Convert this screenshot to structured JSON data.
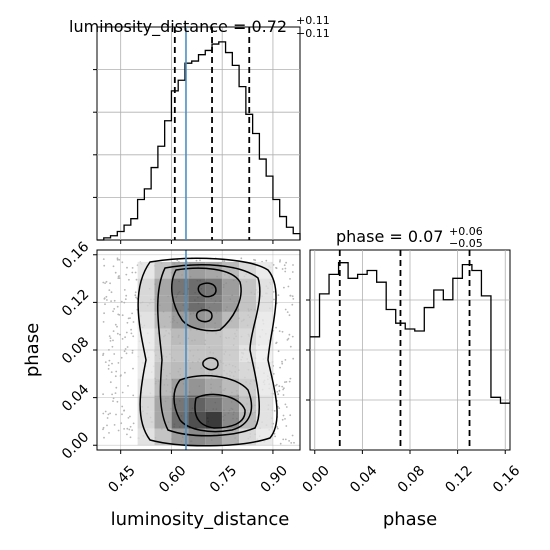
{
  "chart_data": [
    {
      "type": "histogram",
      "panel": "luminosity_distance marginal",
      "title_prefix": "luminosity_distance = 0.72",
      "title_sup": "+0.11",
      "title_sub": "−0.11",
      "xlim": [
        0.38,
        0.98
      ],
      "bin_edges": [
        0.38,
        0.4,
        0.42,
        0.44,
        0.46,
        0.48,
        0.5,
        0.52,
        0.54,
        0.56,
        0.58,
        0.6,
        0.62,
        0.64,
        0.66,
        0.68,
        0.7,
        0.72,
        0.74,
        0.76,
        0.78,
        0.8,
        0.82,
        0.84,
        0.86,
        0.88,
        0.9,
        0.92,
        0.94,
        0.96,
        0.98
      ],
      "counts": [
        0,
        2,
        4,
        8,
        14,
        20,
        38,
        48,
        68,
        88,
        112,
        140,
        150,
        166,
        168,
        174,
        178,
        184,
        186,
        176,
        164,
        144,
        118,
        100,
        76,
        60,
        38,
        22,
        12,
        6
      ],
      "ymax": 200,
      "quantiles": [
        0.61,
        0.72,
        0.83
      ],
      "truth": 0.643,
      "grid": true
    },
    {
      "type": "histogram",
      "panel": "phase marginal",
      "title_prefix": "phase = 0.07",
      "title_sup": "+0.06",
      "title_sub": "−0.05",
      "xlim": [
        -0.004,
        0.164
      ],
      "bin_edges": [
        -0.004,
        0.004,
        0.012,
        0.02,
        0.028,
        0.036,
        0.044,
        0.052,
        0.06,
        0.068,
        0.076,
        0.084,
        0.092,
        0.1,
        0.108,
        0.116,
        0.124,
        0.132,
        0.14,
        0.148,
        0.156,
        0.164
      ],
      "counts": [
        116,
        160,
        180,
        192,
        176,
        180,
        184,
        172,
        144,
        130,
        124,
        122,
        146,
        164,
        154,
        176,
        190,
        184,
        158,
        54,
        48
      ],
      "ymax": 205,
      "quantiles": [
        0.021,
        0.072,
        0.13
      ],
      "grid": true
    },
    {
      "type": "heatmap",
      "panel": "2D posterior",
      "xlabel": "luminosity_distance",
      "ylabel": "phase",
      "xlim": [
        0.38,
        0.98
      ],
      "ylim": [
        -0.004,
        0.164
      ],
      "x_ticks": [
        "0.45",
        "0.60",
        "0.75",
        "0.90"
      ],
      "x_tick_values": [
        0.45,
        0.6,
        0.75,
        0.9
      ],
      "y_ticks": [
        "0.00",
        "0.04",
        "0.08",
        "0.12",
        "0.16"
      ],
      "y_tick_values": [
        0.0,
        0.04,
        0.08,
        0.12,
        0.16
      ],
      "phase_x_ticks": [
        "0.00",
        "0.04",
        "0.08",
        "0.12",
        "0.16"
      ],
      "phase_x_tick_values": [
        0.0,
        0.04,
        0.08,
        0.12,
        0.16
      ],
      "truth_x": 0.643,
      "x_edges": [
        0.5,
        0.55,
        0.6,
        0.65,
        0.7,
        0.75,
        0.8,
        0.85,
        0.9
      ],
      "y_edges": [
        0.0,
        0.014,
        0.028,
        0.042,
        0.056,
        0.07,
        0.084,
        0.098,
        0.112,
        0.126,
        0.14,
        0.154
      ],
      "density": [
        [
          0.15,
          0.3,
          0.5,
          0.6,
          0.55,
          0.4,
          0.2,
          0.1
        ],
        [
          0.2,
          0.45,
          0.75,
          0.9,
          1.0,
          0.6,
          0.35,
          0.15
        ],
        [
          0.2,
          0.45,
          0.7,
          0.8,
          0.7,
          0.55,
          0.3,
          0.15
        ],
        [
          0.15,
          0.35,
          0.5,
          0.55,
          0.45,
          0.35,
          0.25,
          0.1
        ],
        [
          0.1,
          0.3,
          0.35,
          0.35,
          0.3,
          0.25,
          0.2,
          0.1
        ],
        [
          0.1,
          0.25,
          0.3,
          0.3,
          0.3,
          0.25,
          0.15,
          0.08
        ],
        [
          0.1,
          0.25,
          0.35,
          0.35,
          0.3,
          0.25,
          0.2,
          0.1
        ],
        [
          0.15,
          0.35,
          0.5,
          0.55,
          0.5,
          0.35,
          0.25,
          0.1
        ],
        [
          0.2,
          0.45,
          0.65,
          0.75,
          0.65,
          0.5,
          0.3,
          0.15
        ],
        [
          0.2,
          0.45,
          0.7,
          0.75,
          0.7,
          0.5,
          0.3,
          0.15
        ],
        [
          0.12,
          0.3,
          0.45,
          0.5,
          0.45,
          0.35,
          0.2,
          0.1
        ]
      ],
      "contour_levels": [
        0.25,
        0.45,
        0.65,
        0.85
      ],
      "grid": true
    }
  ],
  "labels": {
    "xlabel_left": "luminosity_distance",
    "xlabel_right": "phase",
    "ylabel": "phase"
  },
  "colors": {
    "truth_line": "#4c8fc6",
    "hist_line": "#000000",
    "grid": "#b0b0b0"
  }
}
